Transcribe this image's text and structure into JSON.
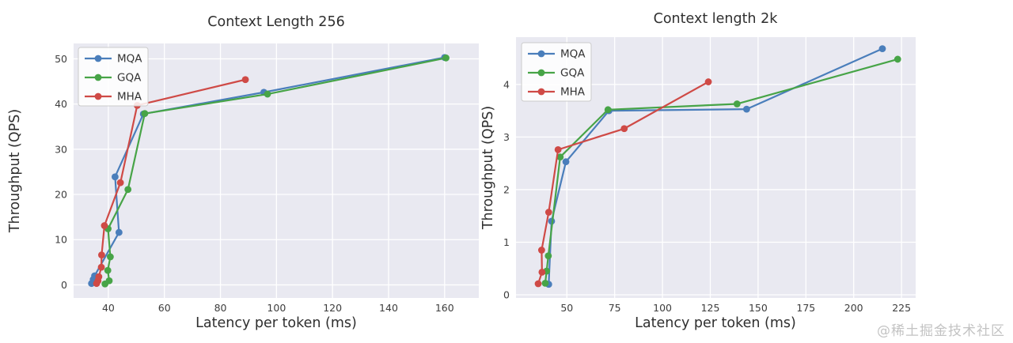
{
  "watermark": "@稀土掘金技术社区",
  "chart_data": [
    {
      "id": "context-256",
      "type": "line",
      "title": "Context Length 256",
      "xlabel": "Latency per token (ms)",
      "ylabel": "Throughput (QPS)",
      "xlim": [
        27.6,
        172.2
      ],
      "ylim": [
        -2.9,
        53.4
      ],
      "xticks": [
        40,
        60,
        80,
        100,
        120,
        140,
        160
      ],
      "yticks": [
        0,
        10,
        20,
        30,
        40,
        50
      ],
      "grid": true,
      "legend_position": "upper-left",
      "plot_bg": "#e9e9f1",
      "grid_color": "#ffffff",
      "series": [
        {
          "name": "MQA",
          "color": "#4a7ebb",
          "points": [
            [
              34.0,
              0.3
            ],
            [
              34.6,
              1.2
            ],
            [
              35.1,
              2.0
            ],
            [
              43.8,
              11.6
            ],
            [
              42.4,
              23.9
            ],
            [
              52.5,
              37.8
            ],
            [
              95.5,
              42.6
            ],
            [
              160.0,
              50.3
            ]
          ]
        },
        {
          "name": "GQA",
          "color": "#47a447",
          "points": [
            [
              38.8,
              0.2
            ],
            [
              40.3,
              0.9
            ],
            [
              39.8,
              3.2
            ],
            [
              40.7,
              6.2
            ],
            [
              39.9,
              12.4
            ],
            [
              47.0,
              21.1
            ],
            [
              53.0,
              37.9
            ],
            [
              96.8,
              42.2
            ],
            [
              160.5,
              50.2
            ]
          ]
        },
        {
          "name": "MHA",
          "color": "#cf4a46",
          "points": [
            [
              35.8,
              0.3
            ],
            [
              36.3,
              0.9
            ],
            [
              36.6,
              1.8
            ],
            [
              37.5,
              3.9
            ],
            [
              37.6,
              6.6
            ],
            [
              38.6,
              13.1
            ],
            [
              44.3,
              22.6
            ],
            [
              50.3,
              39.7
            ],
            [
              88.9,
              45.4
            ]
          ]
        }
      ]
    },
    {
      "id": "context-2k",
      "type": "line",
      "title": "Context length 2k",
      "xlabel": "Latency per token (ms)",
      "ylabel": "Throughput (QPS)",
      "xlim": [
        23.4,
        232.4
      ],
      "ylim": [
        -0.06,
        4.9
      ],
      "xticks": [
        50,
        75,
        100,
        125,
        150,
        175,
        200,
        225
      ],
      "yticks": [
        0,
        1,
        2,
        3,
        4
      ],
      "grid": true,
      "legend_position": "upper-left",
      "plot_bg": "#e9e9f1",
      "grid_color": "#ffffff",
      "series": [
        {
          "name": "MQA",
          "color": "#4a7ebb",
          "points": [
            [
              40.5,
              0.2
            ],
            [
              42.0,
              1.4
            ],
            [
              49.5,
              2.53
            ],
            [
              72.0,
              3.5
            ],
            [
              144.0,
              3.53
            ],
            [
              215.0,
              4.68
            ]
          ]
        },
        {
          "name": "GQA",
          "color": "#47a447",
          "points": [
            [
              38.7,
              0.22
            ],
            [
              39.4,
              0.45
            ],
            [
              40.3,
              0.74
            ],
            [
              46.5,
              2.62
            ],
            [
              71.5,
              3.52
            ],
            [
              139.0,
              3.63
            ],
            [
              223.0,
              4.48
            ]
          ]
        },
        {
          "name": "MHA",
          "color": "#cf4a46",
          "points": [
            [
              35.0,
              0.21
            ],
            [
              37.0,
              0.43
            ],
            [
              36.8,
              0.85
            ],
            [
              40.5,
              1.57
            ],
            [
              45.4,
              2.76
            ],
            [
              80.0,
              3.16
            ],
            [
              124.0,
              4.05
            ]
          ]
        }
      ]
    }
  ],
  "style": {
    "tick_color": "#3d3d3d",
    "label_color": "#2f2f2f",
    "legend_border": "#cccccc",
    "legend_bg": "rgba(255,255,255,0.85)"
  }
}
